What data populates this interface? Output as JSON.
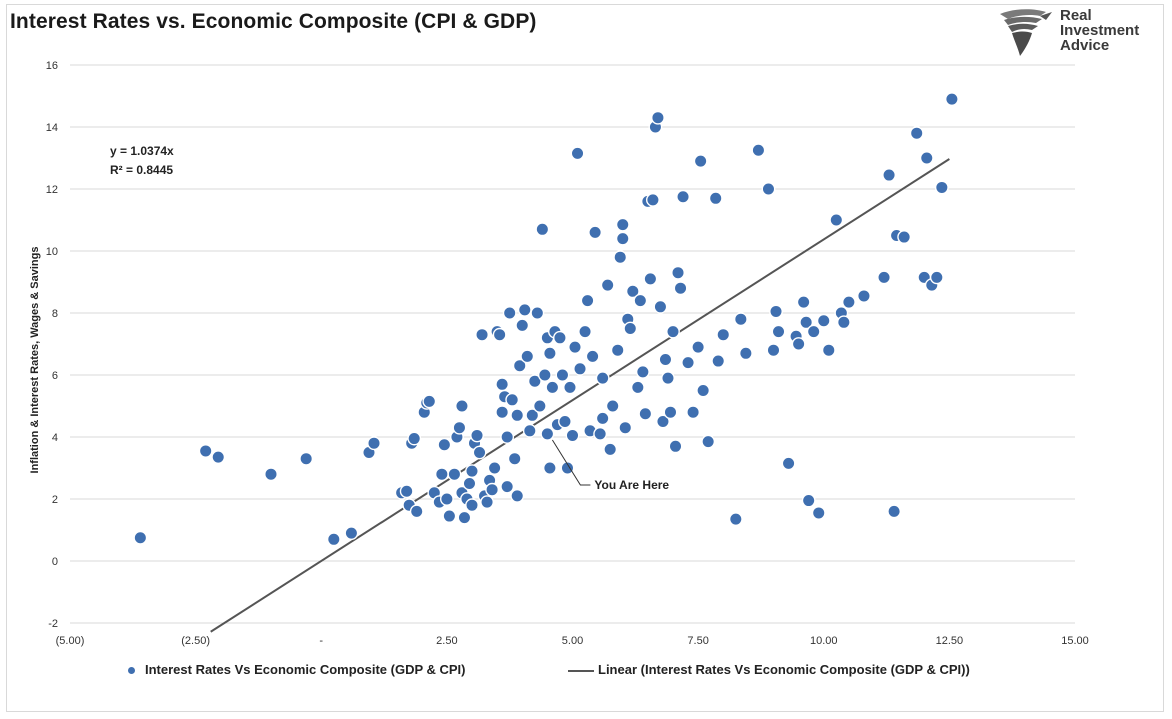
{
  "header": {
    "title": "Interest Rates vs. Economic Composite (CPI & GDP)",
    "logo_lines": [
      "Real",
      "Investment",
      "Advice"
    ]
  },
  "colors": {
    "point_fill": "#3f6fb0",
    "point_stroke": "#ffffff",
    "trend_line": "#555555",
    "grid": "#d9d9d9"
  },
  "icons": {
    "logo": "eagle-logo-icon"
  },
  "chart_data": {
    "type": "scatter",
    "title": "Interest Rates vs. Economic Composite (CPI & GDP)",
    "xlabel": "",
    "ylabel": "Inflation & Interest Rates, Wages & Savings",
    "xlim": [
      -5,
      15
    ],
    "ylim": [
      -2,
      16
    ],
    "x_ticks": [
      -5,
      -2.5,
      0,
      2.5,
      5,
      7.5,
      10,
      12.5,
      15
    ],
    "x_tick_labels": [
      "(5.00)",
      "(2.50)",
      "-",
      "2.50",
      "5.00",
      "7.50",
      "10.00",
      "12.50",
      "15.00"
    ],
    "y_ticks": [
      -2,
      0,
      2,
      4,
      6,
      8,
      10,
      12,
      14,
      16
    ],
    "y_tick_labels": [
      "-2",
      "0",
      "2",
      "4",
      "6",
      "8",
      "10",
      "12",
      "14",
      "16"
    ],
    "grid": "horizontal",
    "legend_placement": "bottom",
    "equation": "y = 1.0374x",
    "r_squared": "R² = 0.8445",
    "annotation": {
      "label": "You Are Here",
      "x": 4.6,
      "y": 4.0
    },
    "trendline": {
      "slope": 1.0374,
      "x_start": -2.2,
      "x_end": 12.5
    },
    "series": [
      {
        "name": "Interest Rates Vs Economic Composite (GDP & CPI)",
        "points": [
          [
            -3.6,
            0.75
          ],
          [
            -2.3,
            3.55
          ],
          [
            -2.05,
            3.35
          ],
          [
            -1.0,
            2.8
          ],
          [
            -0.3,
            3.3
          ],
          [
            0.25,
            0.7
          ],
          [
            0.6,
            0.9
          ],
          [
            0.95,
            3.5
          ],
          [
            1.05,
            3.8
          ],
          [
            1.6,
            2.2
          ],
          [
            1.7,
            2.25
          ],
          [
            1.75,
            1.8
          ],
          [
            1.8,
            3.8
          ],
          [
            1.85,
            3.95
          ],
          [
            1.9,
            1.6
          ],
          [
            2.05,
            4.8
          ],
          [
            2.1,
            5.1
          ],
          [
            2.15,
            5.15
          ],
          [
            2.25,
            2.2
          ],
          [
            2.35,
            1.9
          ],
          [
            2.4,
            2.8
          ],
          [
            2.45,
            3.75
          ],
          [
            2.5,
            2.0
          ],
          [
            2.55,
            1.45
          ],
          [
            2.65,
            2.8
          ],
          [
            2.7,
            4.0
          ],
          [
            2.75,
            4.3
          ],
          [
            2.8,
            5.0
          ],
          [
            2.8,
            2.2
          ],
          [
            2.85,
            1.4
          ],
          [
            2.9,
            2.0
          ],
          [
            2.95,
            2.5
          ],
          [
            3.0,
            2.9
          ],
          [
            3.0,
            1.8
          ],
          [
            3.05,
            3.8
          ],
          [
            3.1,
            4.05
          ],
          [
            3.15,
            3.5
          ],
          [
            3.2,
            7.3
          ],
          [
            3.25,
            2.1
          ],
          [
            3.3,
            1.9
          ],
          [
            3.35,
            2.6
          ],
          [
            3.4,
            2.3
          ],
          [
            3.45,
            3.0
          ],
          [
            3.5,
            7.4
          ],
          [
            3.55,
            7.3
          ],
          [
            3.6,
            5.7
          ],
          [
            3.6,
            4.8
          ],
          [
            3.65,
            5.3
          ],
          [
            3.7,
            2.4
          ],
          [
            3.7,
            4.0
          ],
          [
            3.75,
            8.0
          ],
          [
            3.8,
            5.2
          ],
          [
            3.85,
            3.3
          ],
          [
            3.9,
            2.1
          ],
          [
            3.9,
            4.7
          ],
          [
            3.95,
            6.3
          ],
          [
            4.0,
            7.6
          ],
          [
            4.05,
            8.1
          ],
          [
            4.1,
            6.6
          ],
          [
            4.15,
            4.2
          ],
          [
            4.2,
            4.7
          ],
          [
            4.25,
            5.8
          ],
          [
            4.3,
            8.0
          ],
          [
            4.35,
            5.0
          ],
          [
            4.4,
            10.7
          ],
          [
            4.45,
            6.0
          ],
          [
            4.5,
            4.1
          ],
          [
            4.5,
            7.2
          ],
          [
            4.55,
            6.7
          ],
          [
            4.55,
            3.0
          ],
          [
            4.6,
            5.6
          ],
          [
            4.65,
            7.4
          ],
          [
            4.7,
            4.4
          ],
          [
            4.75,
            7.2
          ],
          [
            4.8,
            6.0
          ],
          [
            4.85,
            4.5
          ],
          [
            4.9,
            3.0
          ],
          [
            4.95,
            5.6
          ],
          [
            5.0,
            4.05
          ],
          [
            5.05,
            6.9
          ],
          [
            5.1,
            13.15
          ],
          [
            5.15,
            6.2
          ],
          [
            5.25,
            7.4
          ],
          [
            5.3,
            8.4
          ],
          [
            5.35,
            4.2
          ],
          [
            5.4,
            6.6
          ],
          [
            5.45,
            10.6
          ],
          [
            5.55,
            4.1
          ],
          [
            5.6,
            4.6
          ],
          [
            5.6,
            5.9
          ],
          [
            5.7,
            8.9
          ],
          [
            5.75,
            3.6
          ],
          [
            5.8,
            5.0
          ],
          [
            5.9,
            6.8
          ],
          [
            5.95,
            9.8
          ],
          [
            6.0,
            10.85
          ],
          [
            6.0,
            10.4
          ],
          [
            6.05,
            4.3
          ],
          [
            6.1,
            7.8
          ],
          [
            6.15,
            7.5
          ],
          [
            6.2,
            8.7
          ],
          [
            6.3,
            5.6
          ],
          [
            6.35,
            8.4
          ],
          [
            6.4,
            6.1
          ],
          [
            6.45,
            4.75
          ],
          [
            6.5,
            11.6
          ],
          [
            6.55,
            9.1
          ],
          [
            6.6,
            11.65
          ],
          [
            6.65,
            14.0
          ],
          [
            6.7,
            14.3
          ],
          [
            6.75,
            8.2
          ],
          [
            6.8,
            4.5
          ],
          [
            6.85,
            6.5
          ],
          [
            6.9,
            5.9
          ],
          [
            6.95,
            4.8
          ],
          [
            7.0,
            7.4
          ],
          [
            7.05,
            3.7
          ],
          [
            7.1,
            9.3
          ],
          [
            7.15,
            8.8
          ],
          [
            7.2,
            11.75
          ],
          [
            7.3,
            6.4
          ],
          [
            7.4,
            4.8
          ],
          [
            7.5,
            6.9
          ],
          [
            7.55,
            12.9
          ],
          [
            7.6,
            5.5
          ],
          [
            7.7,
            3.85
          ],
          [
            7.85,
            11.7
          ],
          [
            7.9,
            6.45
          ],
          [
            8.0,
            7.3
          ],
          [
            8.25,
            1.35
          ],
          [
            8.35,
            7.8
          ],
          [
            8.45,
            6.7
          ],
          [
            8.7,
            13.25
          ],
          [
            8.9,
            12.0
          ],
          [
            9.0,
            6.8
          ],
          [
            9.05,
            8.05
          ],
          [
            9.1,
            7.4
          ],
          [
            9.3,
            3.15
          ],
          [
            9.45,
            7.25
          ],
          [
            9.5,
            7.0
          ],
          [
            9.6,
            8.35
          ],
          [
            9.65,
            7.7
          ],
          [
            9.7,
            1.95
          ],
          [
            9.8,
            7.4
          ],
          [
            9.9,
            1.55
          ],
          [
            10.0,
            7.75
          ],
          [
            10.1,
            6.8
          ],
          [
            10.25,
            11.0
          ],
          [
            10.35,
            8.0
          ],
          [
            10.4,
            7.7
          ],
          [
            10.5,
            8.35
          ],
          [
            10.8,
            8.55
          ],
          [
            11.2,
            9.15
          ],
          [
            11.3,
            12.45
          ],
          [
            11.4,
            1.6
          ],
          [
            11.45,
            10.5
          ],
          [
            11.6,
            10.45
          ],
          [
            11.85,
            13.8
          ],
          [
            12.0,
            9.15
          ],
          [
            12.05,
            13.0
          ],
          [
            12.15,
            8.9
          ],
          [
            12.25,
            9.15
          ],
          [
            12.35,
            12.05
          ],
          [
            12.55,
            14.9
          ]
        ]
      },
      {
        "name": "Linear (Interest Rates Vs Economic Composite (GDP & CPI))",
        "kind": "trendline"
      }
    ]
  },
  "legend": {
    "scatter_label": "Interest Rates Vs Economic Composite (GDP & CPI)",
    "line_label": "Linear (Interest Rates Vs Economic Composite (GDP & CPI))"
  }
}
